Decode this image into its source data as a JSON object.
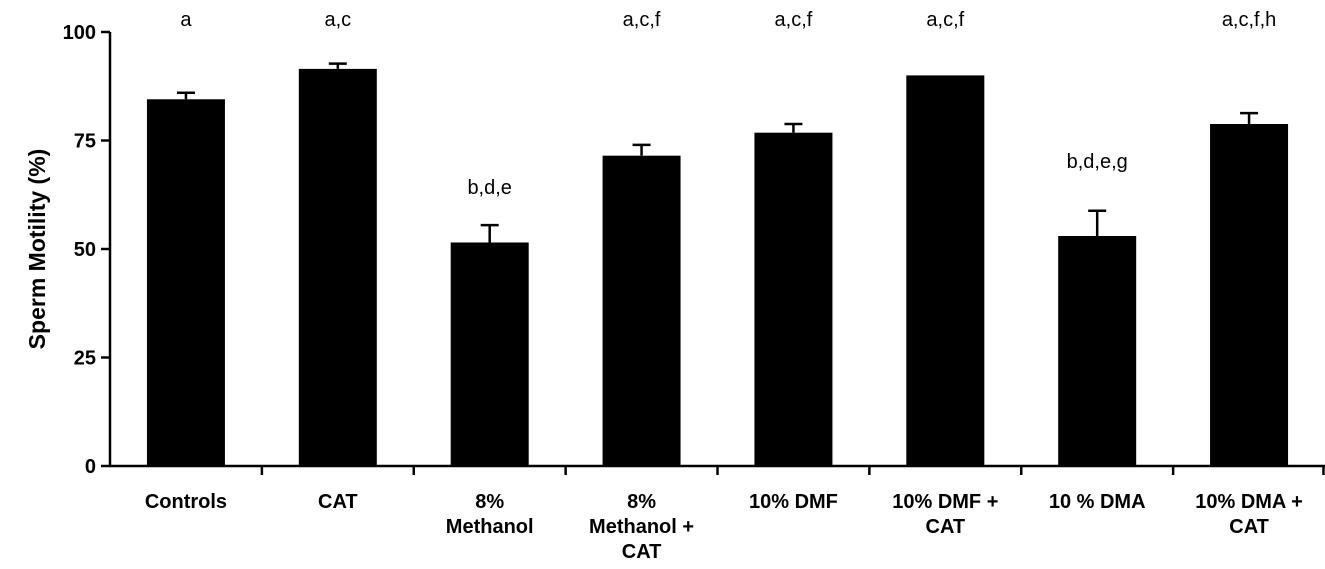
{
  "chart_data": {
    "type": "bar",
    "ylabel": "Sperm Motility (%)",
    "ylim": [
      0,
      100
    ],
    "yticks": [
      0,
      25,
      50,
      75,
      100
    ],
    "grid": false,
    "bar_color": "#000000",
    "categories": [
      [
        "Controls"
      ],
      [
        "CAT"
      ],
      [
        "8%",
        "Methanol"
      ],
      [
        "8%",
        "Methanol +",
        "CAT"
      ],
      [
        "10% DMF"
      ],
      [
        "10% DMF +",
        "CAT"
      ],
      [
        "10 % DMA"
      ],
      [
        "10% DMA +",
        "CAT"
      ]
    ],
    "values": [
      84.5,
      91.5,
      51.5,
      71.5,
      76.8,
      90.0,
      53.0,
      78.8
    ],
    "errors": [
      1.5,
      1.2,
      4.0,
      2.5,
      2.0,
      0.0,
      5.8,
      2.5
    ],
    "annotations": [
      "a",
      "a,c",
      "b,d,e",
      "a,c,f",
      "a,c,f",
      "a,c,f",
      "b,d,e,g",
      "a,c,f,h"
    ]
  }
}
